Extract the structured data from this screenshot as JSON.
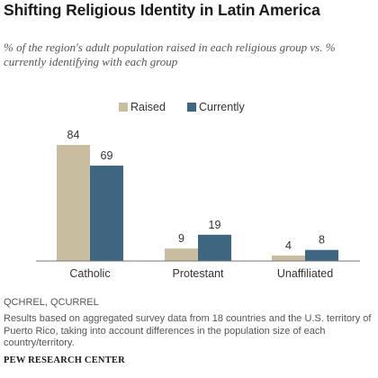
{
  "header": {
    "title": "Shifting Religious Identity in Latin America",
    "subtitle": "% of the region's adult population raised in each religious group vs. % currently identifying with each group"
  },
  "chart_data": {
    "type": "bar",
    "title": "Shifting Religious Identity in Latin America",
    "categories": [
      "Catholic",
      "Protestant",
      "Unaffiliated"
    ],
    "series": [
      {
        "name": "Raised",
        "values": [
          84,
          9,
          4
        ],
        "color": "#c8bd9f"
      },
      {
        "name": "Currently",
        "values": [
          69,
          19,
          8
        ],
        "color": "#3e6680"
      }
    ],
    "ylim": [
      0,
      100
    ],
    "grid": false,
    "legend_position": "top-center",
    "xlabel": "",
    "ylabel": ""
  },
  "footer": {
    "variables": "QCHREL, QCURREL",
    "note": "Results based on aggregated survey data from 18 countries and the U.S. territory of Puerto Rico, taking into account differences in the population size of each country/territory.",
    "source": "PEW RESEARCH CENTER"
  }
}
